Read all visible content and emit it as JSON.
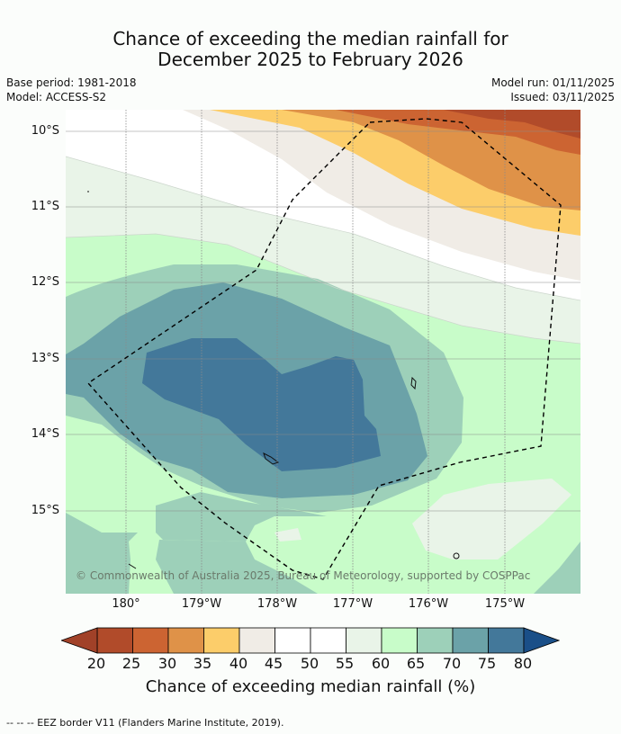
{
  "header": {
    "title_line1": "Chance of exceeding the median rainfall for",
    "title_line2": "December 2025 to February 2026",
    "base_period": "Base period: 1981-2018",
    "model": "Model: ACCESS-S2",
    "model_run": "Model run: 01/11/2025",
    "issued": "Issued: 03/11/2025"
  },
  "axes": {
    "lat_labels": [
      "10°S",
      "11°S",
      "12°S",
      "13°S",
      "14°S",
      "15°S"
    ],
    "lon_labels": [
      "180°",
      "179°W",
      "178°W",
      "177°W",
      "176°W",
      "175°W"
    ]
  },
  "map": {
    "copyright": "© Commonwealth of Australia 2025, Bureau of Meteorology, supported by COSPPac",
    "boundary": "EEZ border",
    "extent": {
      "lon_min": -180.8,
      "lon_max": -174.0,
      "lat_min": -16.1,
      "lat_max": -9.7
    }
  },
  "colorbar": {
    "ticks": [
      "20",
      "25",
      "30",
      "35",
      "40",
      "45",
      "50",
      "55",
      "60",
      "65",
      "70",
      "75",
      "80"
    ],
    "label": "Chance of exceeding median rainfall (%)",
    "colors": [
      "#b14b2a",
      "#cc6432",
      "#df9248",
      "#fccd6a",
      "#f0ece6",
      "#ffffff",
      "#ffffff",
      "#e9f4e8",
      "#c8fcc9",
      "#9dd0b9",
      "#6ba2a8",
      "#43789a"
    ],
    "under_color": "#a14128",
    "over_color": "#1a4f88"
  },
  "footnote": "-- -- -- EEZ border V11 (Flanders Marine Institute, 2019)."
}
